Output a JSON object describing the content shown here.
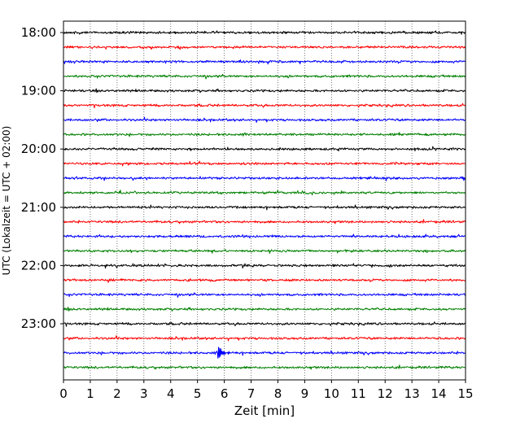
{
  "chart_data": {
    "type": "line",
    "title": "",
    "xlabel": "Zeit  [min]",
    "ylabel": "UTC (Lokalzeit = UTC + 02:00)",
    "xlim": [
      0,
      15
    ],
    "x_ticks": [
      0,
      1,
      2,
      3,
      4,
      5,
      6,
      7,
      8,
      9,
      10,
      11,
      12,
      13,
      14,
      15
    ],
    "x_tick_labels": [
      "0",
      "1",
      "2",
      "3",
      "4",
      "5",
      "6",
      "7",
      "8",
      "9",
      "10",
      "11",
      "12",
      "13",
      "14",
      "15"
    ],
    "y_tick_labels": [
      "18:00",
      "19:00",
      "20:00",
      "21:00",
      "22:00",
      "23:00"
    ],
    "grid": {
      "x": "dotted",
      "y": "none"
    },
    "trace_interval_min": 15,
    "traces": [
      {
        "start": "18:00",
        "color": "#000000"
      },
      {
        "start": "18:15",
        "color": "#ff0000"
      },
      {
        "start": "18:30",
        "color": "#0000ff"
      },
      {
        "start": "18:45",
        "color": "#008000"
      },
      {
        "start": "19:00",
        "color": "#000000"
      },
      {
        "start": "19:15",
        "color": "#ff0000"
      },
      {
        "start": "19:30",
        "color": "#0000ff"
      },
      {
        "start": "19:45",
        "color": "#008000"
      },
      {
        "start": "20:00",
        "color": "#000000"
      },
      {
        "start": "20:15",
        "color": "#ff0000"
      },
      {
        "start": "20:30",
        "color": "#0000ff"
      },
      {
        "start": "20:45",
        "color": "#008000"
      },
      {
        "start": "21:00",
        "color": "#000000"
      },
      {
        "start": "21:15",
        "color": "#ff0000"
      },
      {
        "start": "21:30",
        "color": "#0000ff"
      },
      {
        "start": "21:45",
        "color": "#008000"
      },
      {
        "start": "22:00",
        "color": "#000000"
      },
      {
        "start": "22:15",
        "color": "#ff0000"
      },
      {
        "start": "22:30",
        "color": "#0000ff"
      },
      {
        "start": "22:45",
        "color": "#008000"
      },
      {
        "start": "23:00",
        "color": "#000000"
      },
      {
        "start": "23:15",
        "color": "#ff0000"
      },
      {
        "start": "23:30",
        "color": "#0000ff",
        "event_at_min": 5.75
      },
      {
        "start": "23:45",
        "color": "#008000"
      }
    ]
  }
}
